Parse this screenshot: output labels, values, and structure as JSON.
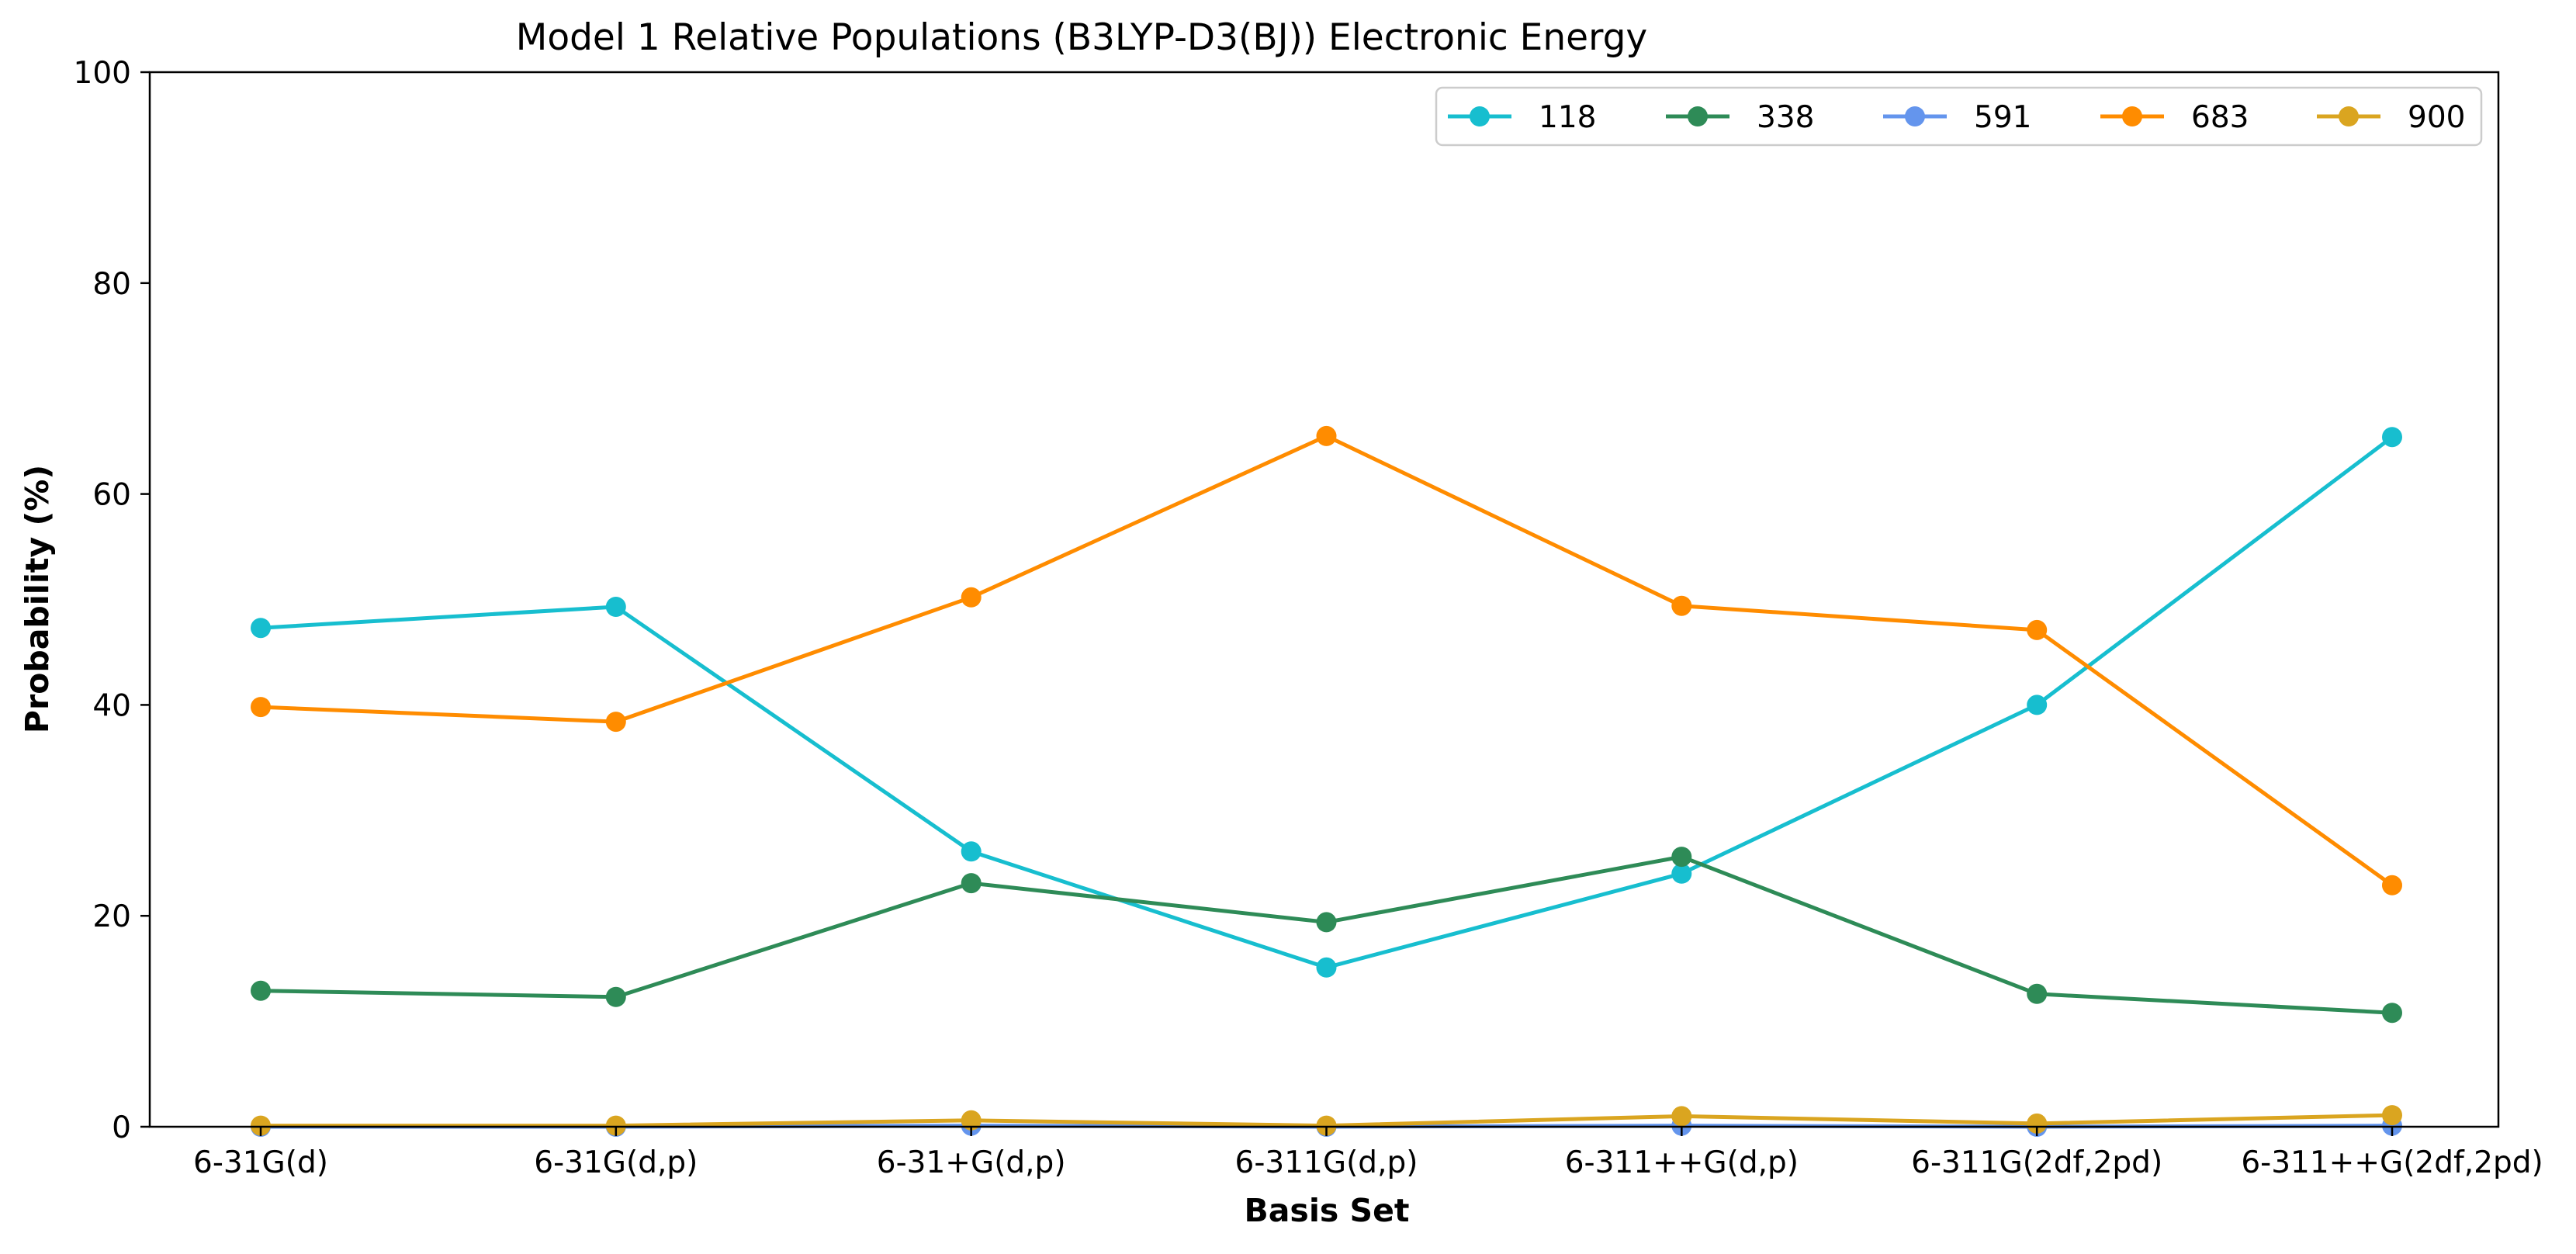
{
  "chart_data": {
    "type": "line",
    "title": "Model 1 Relative Populations (B3LYP-D3(BJ)) Electronic Energy",
    "xlabel": "Basis Set",
    "ylabel": "Probability (%)",
    "ylim": [
      0,
      100
    ],
    "yticks": [
      0,
      20,
      40,
      60,
      80,
      100
    ],
    "grid": false,
    "legend_position": "top-right",
    "categories": [
      "6-31G(d)",
      "6-31G(d,p)",
      "6-31+G(d,p)",
      "6-311G(d,p)",
      "6-311++G(d,p)",
      "6-311G(2df,2pd)",
      "6-311++G(2df,2pd)"
    ],
    "series": [
      {
        "name": "118",
        "color": "#17becf",
        "values": [
          47.3,
          49.3,
          26.1,
          15.1,
          24.0,
          40.0,
          65.4
        ]
      },
      {
        "name": "338",
        "color": "#2e8b57",
        "values": [
          12.9,
          12.3,
          23.1,
          19.4,
          25.6,
          12.6,
          10.8
        ]
      },
      {
        "name": "591",
        "color": "#6495ed",
        "values": [
          0.0,
          0.0,
          0.1,
          0.0,
          0.1,
          0.0,
          0.1
        ]
      },
      {
        "name": "683",
        "color": "#ff8c00",
        "values": [
          39.8,
          38.4,
          50.2,
          65.5,
          49.4,
          47.1,
          22.9
        ]
      },
      {
        "name": "900",
        "color": "#daa520",
        "values": [
          0.1,
          0.1,
          0.6,
          0.1,
          1.0,
          0.3,
          1.1
        ]
      }
    ]
  }
}
